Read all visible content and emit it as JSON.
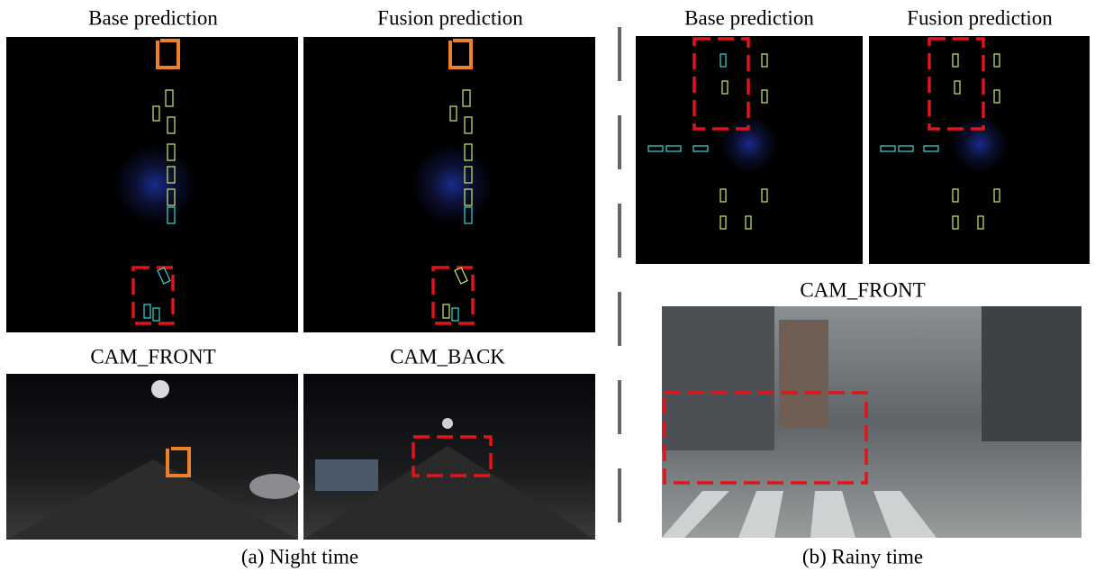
{
  "panels": [
    {
      "caption": "(a) Night time",
      "lidar_titles": [
        "Base prediction",
        "Fusion prediction"
      ],
      "camera_titles": [
        "CAM_FRONT",
        "CAM_BACK"
      ]
    },
    {
      "caption": "(b) Rainy time",
      "lidar_titles": [
        "Base prediction",
        "Fusion prediction"
      ],
      "camera_titles": [
        "CAM_FRONT"
      ]
    }
  ]
}
